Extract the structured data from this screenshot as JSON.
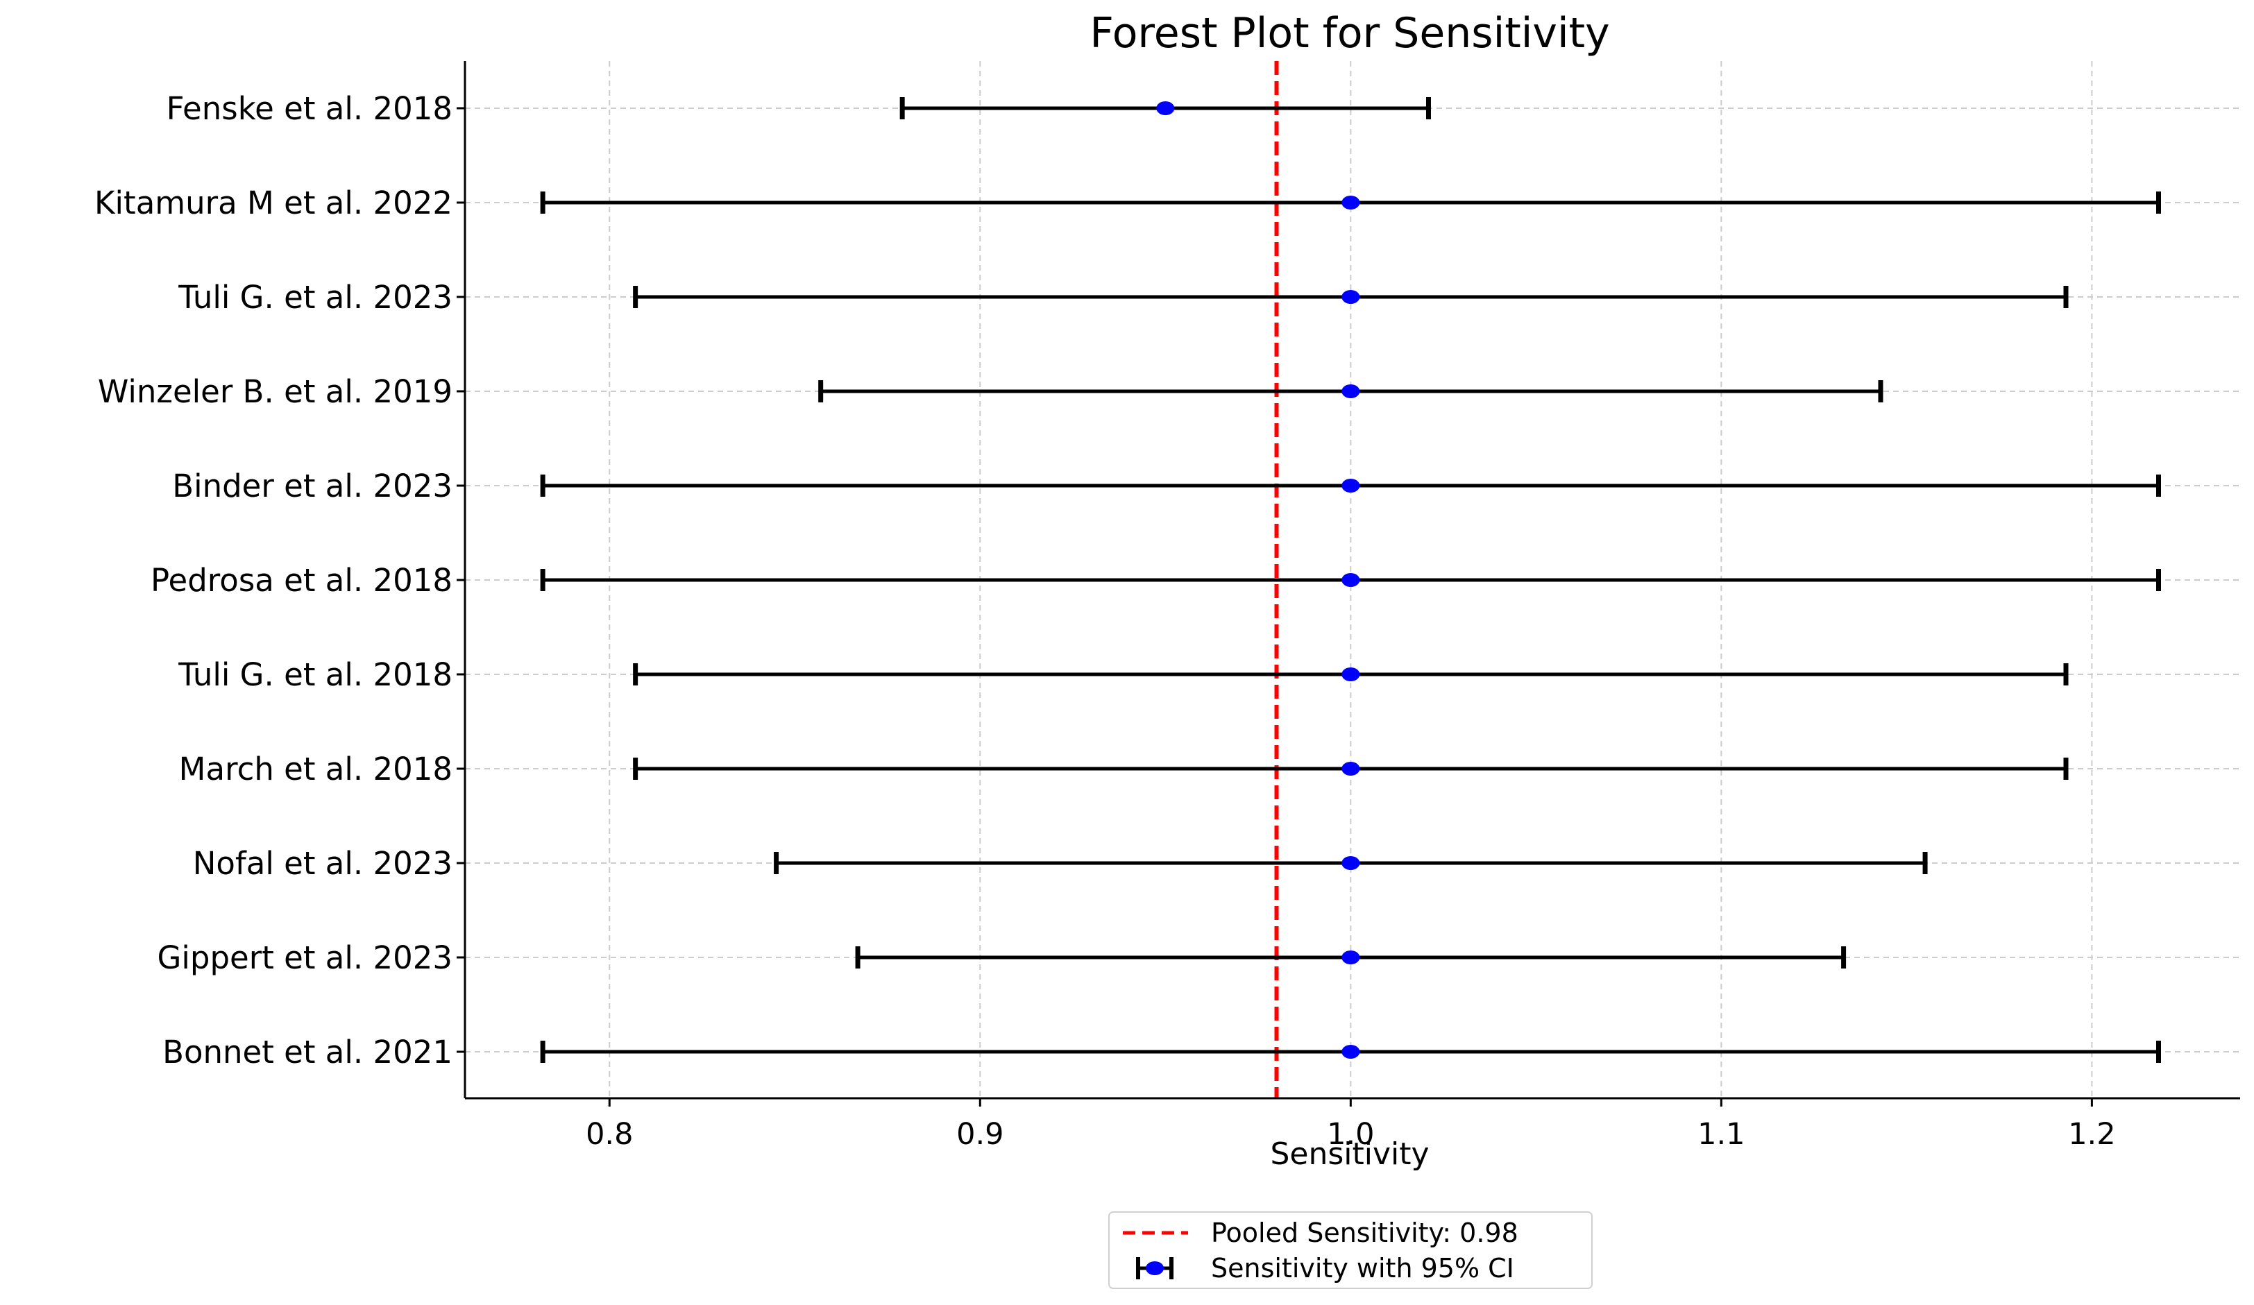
{
  "chart_data": {
    "type": "forest",
    "title": "Forest Plot for Sensitivity",
    "xlabel": "Sensitivity",
    "ylabel": "",
    "xlim": [
      0.761,
      1.24
    ],
    "xticks": [
      0.8,
      0.9,
      1.0,
      1.1,
      1.2
    ],
    "xtick_labels": [
      "0.8",
      "0.9",
      "1.0",
      "1.1",
      "1.2"
    ],
    "grid": true,
    "studies": [
      {
        "label": "Fenske et al. 2018",
        "estimate": 0.95,
        "ci_lower": 0.879,
        "ci_upper": 1.021
      },
      {
        "label": "Kitamura M et al. 2022",
        "estimate": 1.0,
        "ci_lower": 0.782,
        "ci_upper": 1.218
      },
      {
        "label": "Tuli G. et al. 2023",
        "estimate": 1.0,
        "ci_lower": 0.807,
        "ci_upper": 1.193
      },
      {
        "label": "Winzeler B. et al. 2019",
        "estimate": 1.0,
        "ci_lower": 0.857,
        "ci_upper": 1.143
      },
      {
        "label": "Binder et al. 2023",
        "estimate": 1.0,
        "ci_lower": 0.782,
        "ci_upper": 1.218
      },
      {
        "label": "Pedrosa et al. 2018",
        "estimate": 1.0,
        "ci_lower": 0.782,
        "ci_upper": 1.218
      },
      {
        "label": "Tuli G. et al. 2018",
        "estimate": 1.0,
        "ci_lower": 0.807,
        "ci_upper": 1.193
      },
      {
        "label": "March et al. 2018",
        "estimate": 1.0,
        "ci_lower": 0.807,
        "ci_upper": 1.193
      },
      {
        "label": "Nofal et al. 2023",
        "estimate": 1.0,
        "ci_lower": 0.845,
        "ci_upper": 1.155
      },
      {
        "label": "Gippert et al. 2023",
        "estimate": 1.0,
        "ci_lower": 0.867,
        "ci_upper": 1.133
      },
      {
        "label": "Bonnet et al. 2021",
        "estimate": 1.0,
        "ci_lower": 0.782,
        "ci_upper": 1.218
      }
    ],
    "pooled": {
      "value": 0.98,
      "label": "Pooled Sensitivity: 0.98",
      "color": "#ff0000"
    },
    "legend": {
      "placement": "below",
      "entries": [
        {
          "label": "Pooled Sensitivity: 0.98",
          "kind": "pooled-line"
        },
        {
          "label": "Sensitivity with 95% CI",
          "kind": "errorbar"
        }
      ]
    },
    "colors": {
      "point": "#0000ff",
      "errorbar": "#000000",
      "pooled_line": "#ff0000",
      "grid": "#cccccc"
    }
  }
}
